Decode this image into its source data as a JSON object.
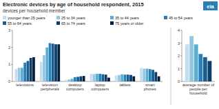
{
  "chart_data": [
    {
      "type": "bar",
      "title": "Electronic devices by age of household respondent, 2015",
      "subtitle": "devices per household member",
      "annotations": [
        "eia"
      ],
      "categories": [
        "televisions",
        "television\nperipherals",
        "desktop\ncomputers",
        "laptop\ncomputers",
        "tablets",
        "smart\nphones"
      ],
      "series": [
        {
          "name": "younger than 25 years",
          "color": "#c6dff0",
          "values": [
            0.72,
            1.15,
            0.08,
            0.45,
            0.35,
            0.8
          ]
        },
        {
          "name": "25 to 34 years",
          "color": "#96c5e0",
          "values": [
            0.8,
            1.55,
            0.12,
            0.43,
            0.38,
            0.75
          ]
        },
        {
          "name": "35 to 44 years",
          "color": "#5aaed0",
          "values": [
            0.8,
            2.0,
            0.15,
            0.45,
            0.42,
            0.75
          ]
        },
        {
          "name": "45 to 54 years",
          "color": "#2a7fb8",
          "values": [
            1.1,
            2.25,
            0.25,
            0.45,
            0.4,
            0.72
          ]
        },
        {
          "name": "55 to 64 years",
          "color": "#1a5e90",
          "values": [
            1.2,
            2.22,
            0.27,
            0.42,
            0.4,
            0.68
          ]
        },
        {
          "name": "65 to 74 years",
          "color": "#0d3f6b",
          "values": [
            1.38,
            2.18,
            0.3,
            0.4,
            0.38,
            0.55
          ]
        },
        {
          "name": "75 years or older",
          "color": "#071e3a",
          "values": [
            1.42,
            2.18,
            0.32,
            0.22,
            0.3,
            0.3
          ]
        }
      ],
      "ylim": [
        0,
        3
      ],
      "yticks": [
        0,
        1,
        2,
        3
      ],
      "legend": "top"
    },
    {
      "type": "bar",
      "categories": [
        "average number of\npeople per\nhousehold"
      ],
      "series": [
        {
          "color": "#c6dff0",
          "values": [
            2.9
          ]
        },
        {
          "color": "#96c5e0",
          "values": [
            3.55
          ]
        },
        {
          "color": "#5aaed0",
          "values": [
            2.9
          ]
        },
        {
          "color": "#2a7fb8",
          "values": [
            2.15
          ]
        },
        {
          "color": "#1a5e90",
          "values": [
            1.9
          ]
        },
        {
          "color": "#0d3f6b",
          "values": [
            1.6
          ]
        }
      ],
      "ylim": [
        0,
        4
      ],
      "yticks": [
        0,
        1,
        2,
        3,
        4
      ]
    }
  ]
}
